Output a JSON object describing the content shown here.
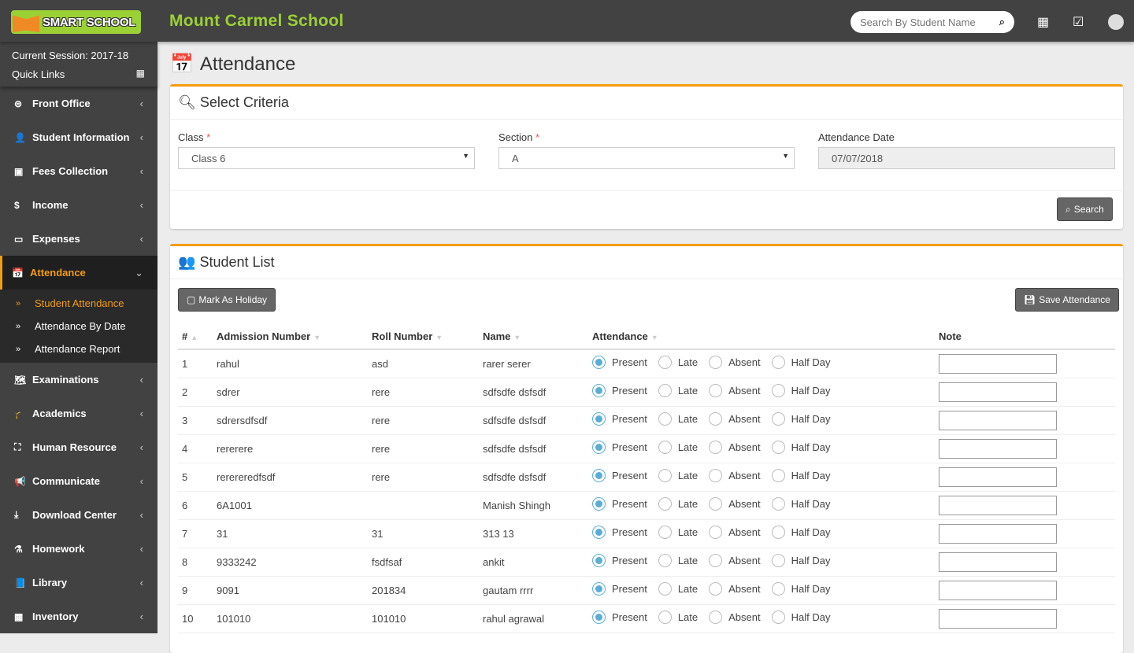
{
  "header": {
    "logo_text": "SMART SCHOOL",
    "school_name": "Mount Carmel School",
    "search_placeholder": "Search By Student Name"
  },
  "sidebar": {
    "session": "Current Session: 2017-18",
    "quick_links": "Quick Links",
    "items_before": [
      {
        "label": "Front Office",
        "icon": "⊜"
      },
      {
        "label": "Student Information",
        "icon": "👤"
      },
      {
        "label": "Fees Collection",
        "icon": "▣"
      },
      {
        "label": "Income",
        "icon": "$"
      },
      {
        "label": "Expenses",
        "icon": "▭"
      }
    ],
    "active": {
      "label": "Attendance",
      "icon": "📅"
    },
    "sub": [
      {
        "label": "Student Attendance",
        "on": true
      },
      {
        "label": "Attendance By Date"
      },
      {
        "label": "Attendance Report"
      }
    ],
    "items_after": [
      {
        "label": "Examinations",
        "icon": "🗺"
      },
      {
        "label": "Academics",
        "icon": "🎓"
      },
      {
        "label": "Human Resource",
        "icon": "⛶"
      },
      {
        "label": "Communicate",
        "icon": "📢"
      },
      {
        "label": "Download Center",
        "icon": "⤓"
      },
      {
        "label": "Homework",
        "icon": "⚗"
      },
      {
        "label": "Library",
        "icon": "📘"
      },
      {
        "label": "Inventory",
        "icon": "▦"
      }
    ]
  },
  "page": {
    "title": "Attendance"
  },
  "criteria": {
    "title": "Select Criteria",
    "class_label": "Class",
    "class_value": "Class 6",
    "section_label": "Section",
    "section_value": "A",
    "date_label": "Attendance Date",
    "date_value": "07/07/2018",
    "search": "Search"
  },
  "list": {
    "title": "Student List",
    "holiday": "Mark As Holiday",
    "save": "Save Attendance",
    "columns": [
      "#",
      "Admission Number",
      "Roll Number",
      "Name",
      "Attendance",
      "Note"
    ],
    "options": [
      "Present",
      "Late",
      "Absent",
      "Half Day"
    ],
    "rows": [
      [
        "1",
        "rahul",
        "asd",
        "rarer serer"
      ],
      [
        "2",
        "sdrer",
        "rere",
        "sdfsdfe dsfsdf"
      ],
      [
        "3",
        "sdrersdfsdf",
        "rere",
        "sdfsdfe dsfsdf"
      ],
      [
        "4",
        "rererere",
        "rere",
        "sdfsdfe dsfsdf"
      ],
      [
        "5",
        "rerereredfsdf",
        "rere",
        "sdfsdfe dsfsdf"
      ],
      [
        "6",
        "6A1001",
        "",
        "Manish Shingh"
      ],
      [
        "7",
        "31",
        "31",
        "313 13"
      ],
      [
        "8",
        "9333242",
        "fsdfsaf",
        "ankit"
      ],
      [
        "9",
        "9091",
        "201834",
        "gautam rrrr"
      ],
      [
        "10",
        "101010",
        "101010",
        "rahul agrawal"
      ]
    ],
    "selected": "Present"
  }
}
